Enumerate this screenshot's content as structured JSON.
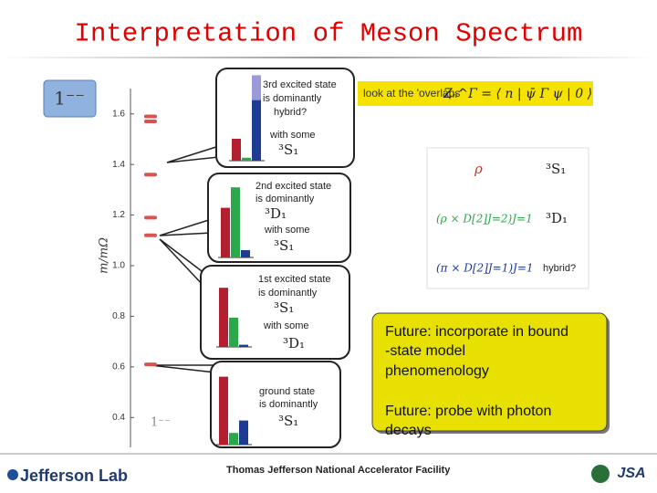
{
  "title": "Interpretation of Meson Spectrum",
  "chart": {
    "ylabel": "m/mΩ",
    "channel_box": "1⁻⁻",
    "channel_label": "1⁻⁻",
    "ylim": [
      0.3,
      1.7
    ],
    "yticks": [
      0.4,
      0.6,
      0.8,
      {
        "value": 1,
        "label": "1.0"
      },
      1.2,
      1.4,
      1.6
    ],
    "levels": [
      1.59,
      1.57,
      1.36,
      1.19,
      1.12,
      0.61
    ],
    "level_color": "#d9534f"
  },
  "insets": [
    {
      "lines": [
        "3rd excited state",
        "is dominantly",
        "hybrid?",
        "with some",
        "³S₁"
      ],
      "bars": [
        0.3,
        0.04,
        0.83
      ],
      "hybrid_part": 0.34
    },
    {
      "lines": [
        "2nd excited state",
        "is dominantly",
        "³D₁",
        "with some",
        "³S₁"
      ],
      "bars": [
        0.68,
        0.96,
        0.1
      ]
    },
    {
      "lines": [
        "1st excited state",
        "is dominantly",
        "³S₁",
        "with some",
        "³D₁"
      ],
      "bars": [
        0.81,
        0.4,
        0.03
      ]
    },
    {
      "lines": [
        "ground state",
        "is dominantly",
        "³S₁"
      ],
      "bars": [
        0.93,
        0.16,
        0.33
      ]
    }
  ],
  "bar_colors": [
    "#b22030",
    "#2aa84a",
    "#1f3a93"
  ],
  "hybrid_color": "#9a9ad6",
  "overlaps": {
    "label": "look at the 'overlaps'",
    "formula": "Zₙ^Γ = ⟨ n | ψ̄ Γ ψ | 0 ⟩"
  },
  "operators": [
    {
      "op": "ρ",
      "wave": "³S₁",
      "color": "#c0392b"
    },
    {
      "op": "(ρ × D[2]J=2)J=1",
      "wave": "³D₁",
      "color": "#2aa84a"
    },
    {
      "op": "(π × D[2]J=1)J=1",
      "wave": "hybrid?",
      "color": "#1f3a93"
    }
  ],
  "notes": [
    [
      "Future: incorporate in bound",
      "-state model",
      "phenomenology"
    ],
    [
      "Future: probe with photon",
      "decays"
    ]
  ],
  "footer": {
    "lab": "Jefferson Lab",
    "facility": "Thomas Jefferson National Accelerator Facility",
    "logo": "JSA"
  }
}
